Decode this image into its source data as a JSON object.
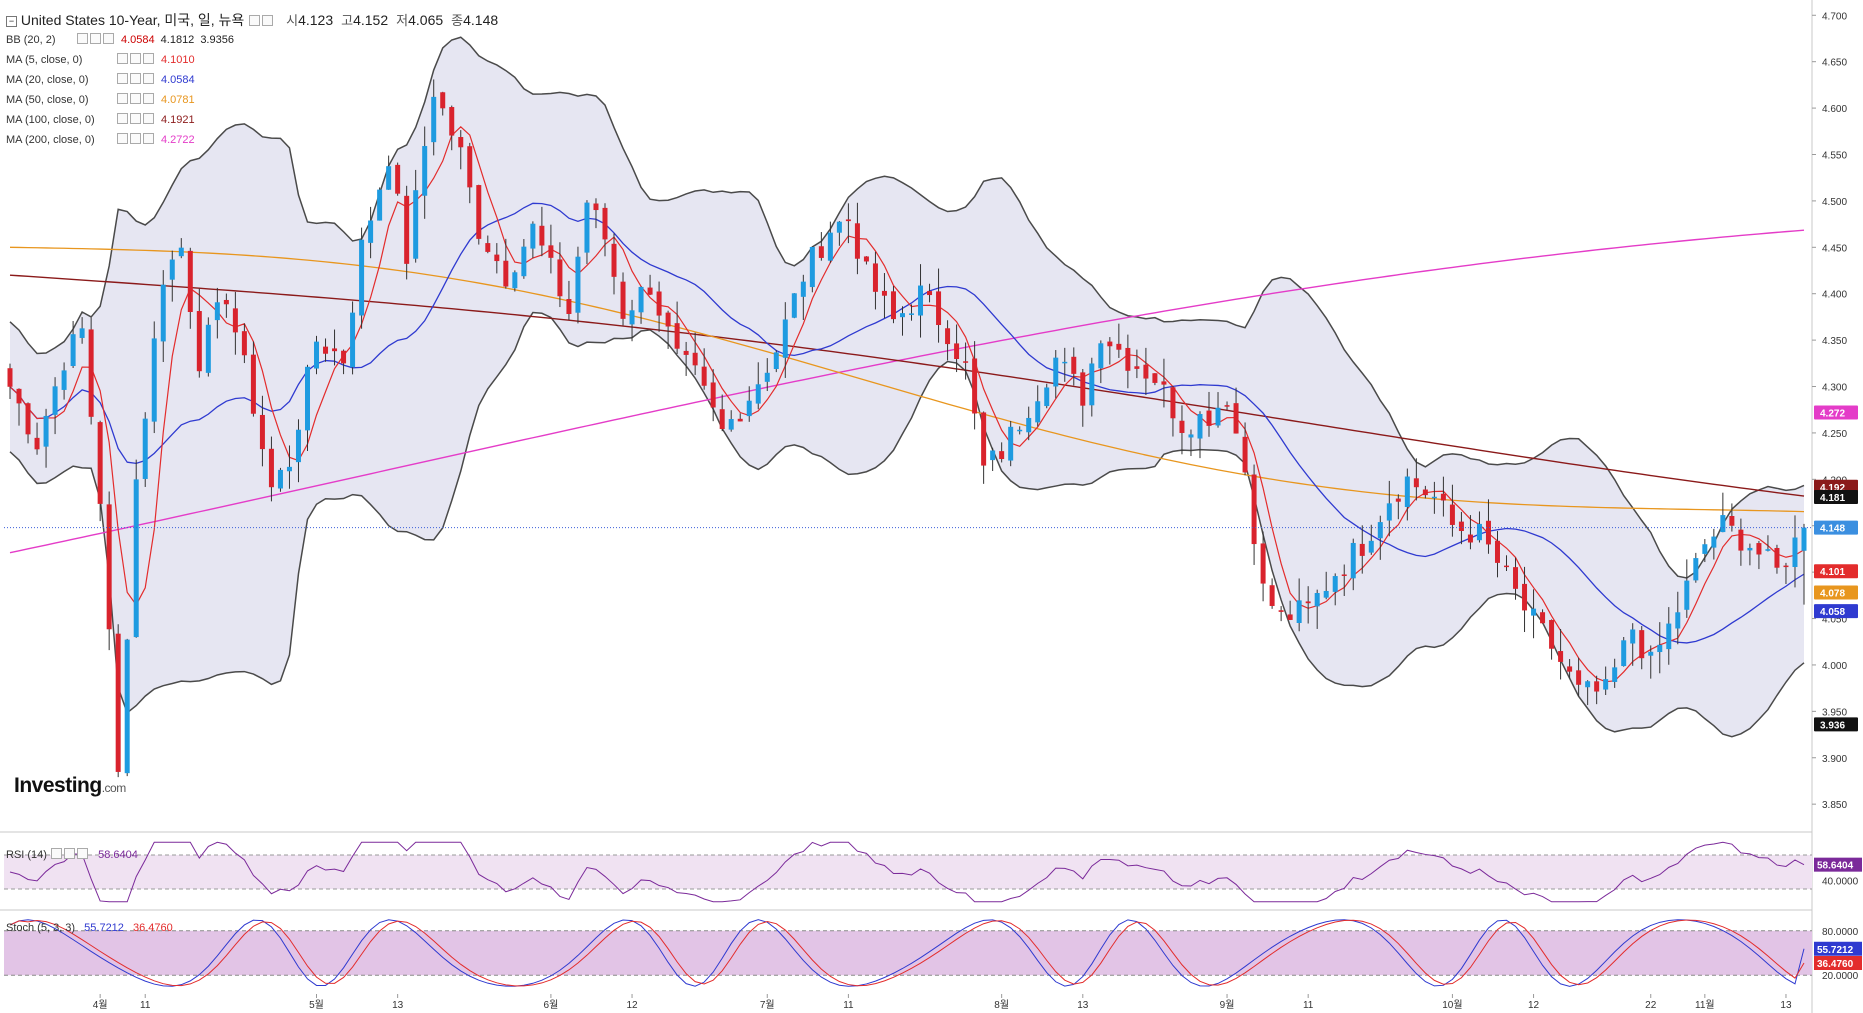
{
  "header": {
    "instrument": "United States 10-Year, 미국, 일, 뉴욕",
    "ohlc": [
      {
        "k": "시",
        "v": "4.123"
      },
      {
        "k": "고",
        "v": "4.152"
      },
      {
        "k": "저",
        "v": "4.065"
      },
      {
        "k": "종",
        "v": "4.148"
      }
    ]
  },
  "indicators": [
    {
      "name": "BB (20, 2)",
      "values": [
        "4.0584",
        "4.1812",
        "3.9356"
      ],
      "colors": [
        "#cc0000",
        "#222222",
        "#222222"
      ]
    },
    {
      "name": "MA (5, close, 0)",
      "values": [
        "4.1010"
      ],
      "colors": [
        "#e32c2c"
      ]
    },
    {
      "name": "MA (20, close, 0)",
      "values": [
        "4.0584"
      ],
      "colors": [
        "#2f3ad0"
      ]
    },
    {
      "name": "MA (50, close, 0)",
      "values": [
        "4.0781"
      ],
      "colors": [
        "#e8961e"
      ]
    },
    {
      "name": "MA (100, close, 0)",
      "values": [
        "4.1921"
      ],
      "colors": [
        "#8b1a1a"
      ]
    },
    {
      "name": "MA (200, close, 0)",
      "values": [
        "4.2722"
      ],
      "colors": [
        "#e43cc8"
      ]
    }
  ],
  "brand": {
    "main": "Investing",
    "suffix": ".com"
  },
  "colors": {
    "up": "#1e9be0",
    "down": "#d9232d",
    "bb_fill": "#e3e3f1",
    "bb_line": "#4a4a4a",
    "ma5": "#e32c2c",
    "ma20": "#2f3ad0",
    "ma50": "#e8961e",
    "ma100": "#8b1a1a",
    "ma200": "#e43cc8"
  },
  "price_labels": [
    {
      "v": 4.192,
      "text": "4.192",
      "bg": "#8b1a1a"
    },
    {
      "v": 4.181,
      "text": "4.181",
      "bg": "#111111"
    },
    {
      "v": 4.148,
      "text": "4.148",
      "bg": "#3b8fe0"
    },
    {
      "v": 4.101,
      "text": "4.101",
      "bg": "#e32c2c"
    },
    {
      "v": 4.078,
      "text": "4.078",
      "bg": "#e8961e"
    },
    {
      "v": 4.058,
      "text": "4.058",
      "bg": "#2f3ad0"
    },
    {
      "v": 3.936,
      "text": "3.936",
      "bg": "#111111"
    },
    {
      "v": 4.272,
      "text": "4.272",
      "bg": "#e43cc8"
    }
  ],
  "chart_data": [
    {
      "type": "candlestick",
      "title": "United States 10-Year, 미국, 일, 뉴욕",
      "ylim": [
        3.82,
        4.71
      ],
      "y_ticks": [
        "4.700",
        "4.650",
        "4.600",
        "4.550",
        "4.500",
        "4.450",
        "4.400",
        "4.350",
        "4.300",
        "4.250",
        "4.200",
        "4.150",
        "4.100",
        "4.050",
        "4.000",
        "3.950",
        "3.900",
        "3.850"
      ],
      "x_ticks": [
        {
          "i": 10,
          "label": "4월"
        },
        {
          "i": 15,
          "label": "11"
        },
        {
          "i": 34,
          "label": "5월"
        },
        {
          "i": 43,
          "label": "13"
        },
        {
          "i": 60,
          "label": "6월"
        },
        {
          "i": 69,
          "label": "12"
        },
        {
          "i": 84,
          "label": "7월"
        },
        {
          "i": 93,
          "label": "11"
        },
        {
          "i": 110,
          "label": "8월"
        },
        {
          "i": 119,
          "label": "13"
        },
        {
          "i": 135,
          "label": "9월"
        },
        {
          "i": 144,
          "label": "11"
        },
        {
          "i": 160,
          "label": "10월"
        },
        {
          "i": 169,
          "label": "12"
        },
        {
          "i": 182,
          "label": "22"
        },
        {
          "i": 188,
          "label": "11월"
        },
        {
          "i": 197,
          "label": "13"
        }
      ],
      "last_price": 4.148,
      "bb_upper_tail": 4.181,
      "bb_lower_tail": 3.936
    },
    {
      "type": "line",
      "title": "RSI (14)",
      "value": "58.6404",
      "y_ticks": [
        "40.0000"
      ],
      "levels": [
        70,
        30
      ]
    },
    {
      "type": "line",
      "title": "Stoch (5, 3, 3)",
      "series": [
        {
          "name": "%K",
          "value": "55.7212",
          "color": "#2f3ad0"
        },
        {
          "name": "%D",
          "value": "36.4760",
          "color": "#e32c2c"
        }
      ],
      "y_ticks": [
        "80.0000",
        "20.0000"
      ]
    }
  ]
}
